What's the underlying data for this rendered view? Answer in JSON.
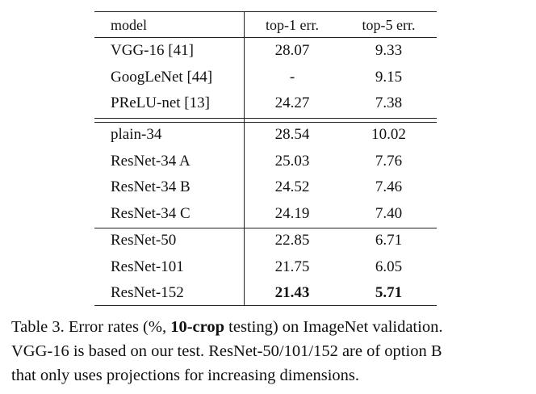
{
  "table": {
    "header": [
      "model",
      "top-1 err.",
      "top-5 err."
    ],
    "groups": [
      [
        [
          "VGG-16 [41]",
          "28.07",
          "9.33"
        ],
        [
          "GoogLeNet [44]",
          "-",
          "9.15"
        ],
        [
          "PReLU-net [13]",
          "24.27",
          "7.38"
        ]
      ],
      [
        [
          "plain-34",
          "28.54",
          "10.02"
        ],
        [
          "ResNet-34 A",
          "25.03",
          "7.76"
        ],
        [
          "ResNet-34 B",
          "24.52",
          "7.46"
        ],
        [
          "ResNet-34 C",
          "24.19",
          "7.40"
        ]
      ],
      [
        [
          "ResNet-50",
          "22.85",
          "6.71"
        ],
        [
          "ResNet-101",
          "21.75",
          "6.05"
        ],
        [
          "ResNet-152",
          "21.43",
          "5.71"
        ]
      ]
    ]
  },
  "caption": [
    [
      "Table 3. Error rates (%, ",
      "10-crop",
      " testing) on ImageNet validation."
    ],
    [
      "VGG-16 is based on our test. ResNet-50/101/152 are of option B"
    ],
    [
      "that only uses projections for increasing dimensions."
    ]
  ]
}
